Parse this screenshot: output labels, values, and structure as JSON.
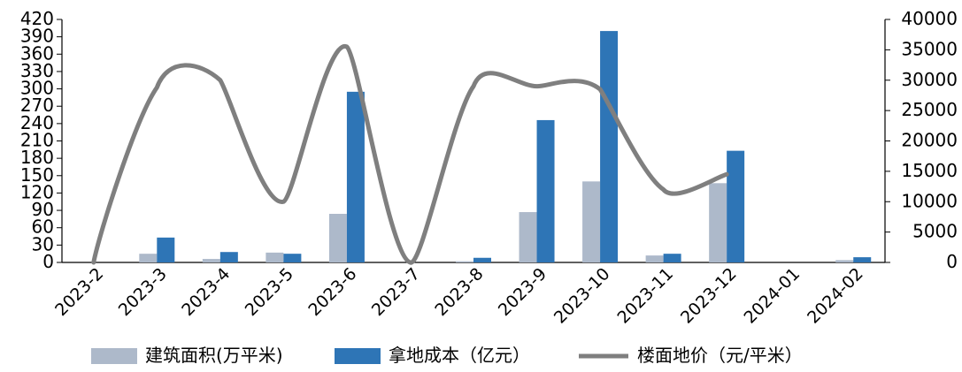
{
  "chart_data": {
    "type": "bar",
    "categories": [
      "2023-2",
      "2023-3",
      "2023-4",
      "2023-5",
      "2023-6",
      "2023-7",
      "2023-8",
      "2023-9",
      "2023-10",
      "2023-11",
      "2023-12",
      "2024-01",
      "2024-02"
    ],
    "series": [
      {
        "name": "建筑面积(万平米)",
        "type": "bar",
        "axis": "left",
        "color": "#adb9ca",
        "values": [
          0,
          15,
          6,
          17,
          84,
          0,
          2,
          87,
          140,
          12,
          137,
          0,
          4
        ]
      },
      {
        "name": "拿地成本（亿元）",
        "type": "bar",
        "axis": "left",
        "color": "#2e75b6",
        "values": [
          0,
          43,
          18,
          15,
          295,
          0,
          8,
          246,
          400,
          15,
          193,
          0,
          9
        ]
      },
      {
        "name": "楼面地价（元/平米）",
        "type": "line",
        "axis": "right",
        "color": "#7f7f7f",
        "values": [
          0,
          28800,
          30000,
          10000,
          35500,
          0,
          29000,
          29000,
          28500,
          12000,
          14500,
          null,
          null
        ]
      }
    ],
    "y_left": {
      "min": 0,
      "max": 420,
      "ticks": [
        0,
        30,
        60,
        90,
        120,
        150,
        180,
        210,
        240,
        270,
        300,
        330,
        360,
        390,
        420
      ]
    },
    "y_right": {
      "min": 0,
      "max": 40000,
      "ticks": [
        0,
        5000,
        10000,
        15000,
        20000,
        25000,
        30000,
        35000,
        40000
      ]
    },
    "legend_position": "bottom",
    "grid": false
  }
}
